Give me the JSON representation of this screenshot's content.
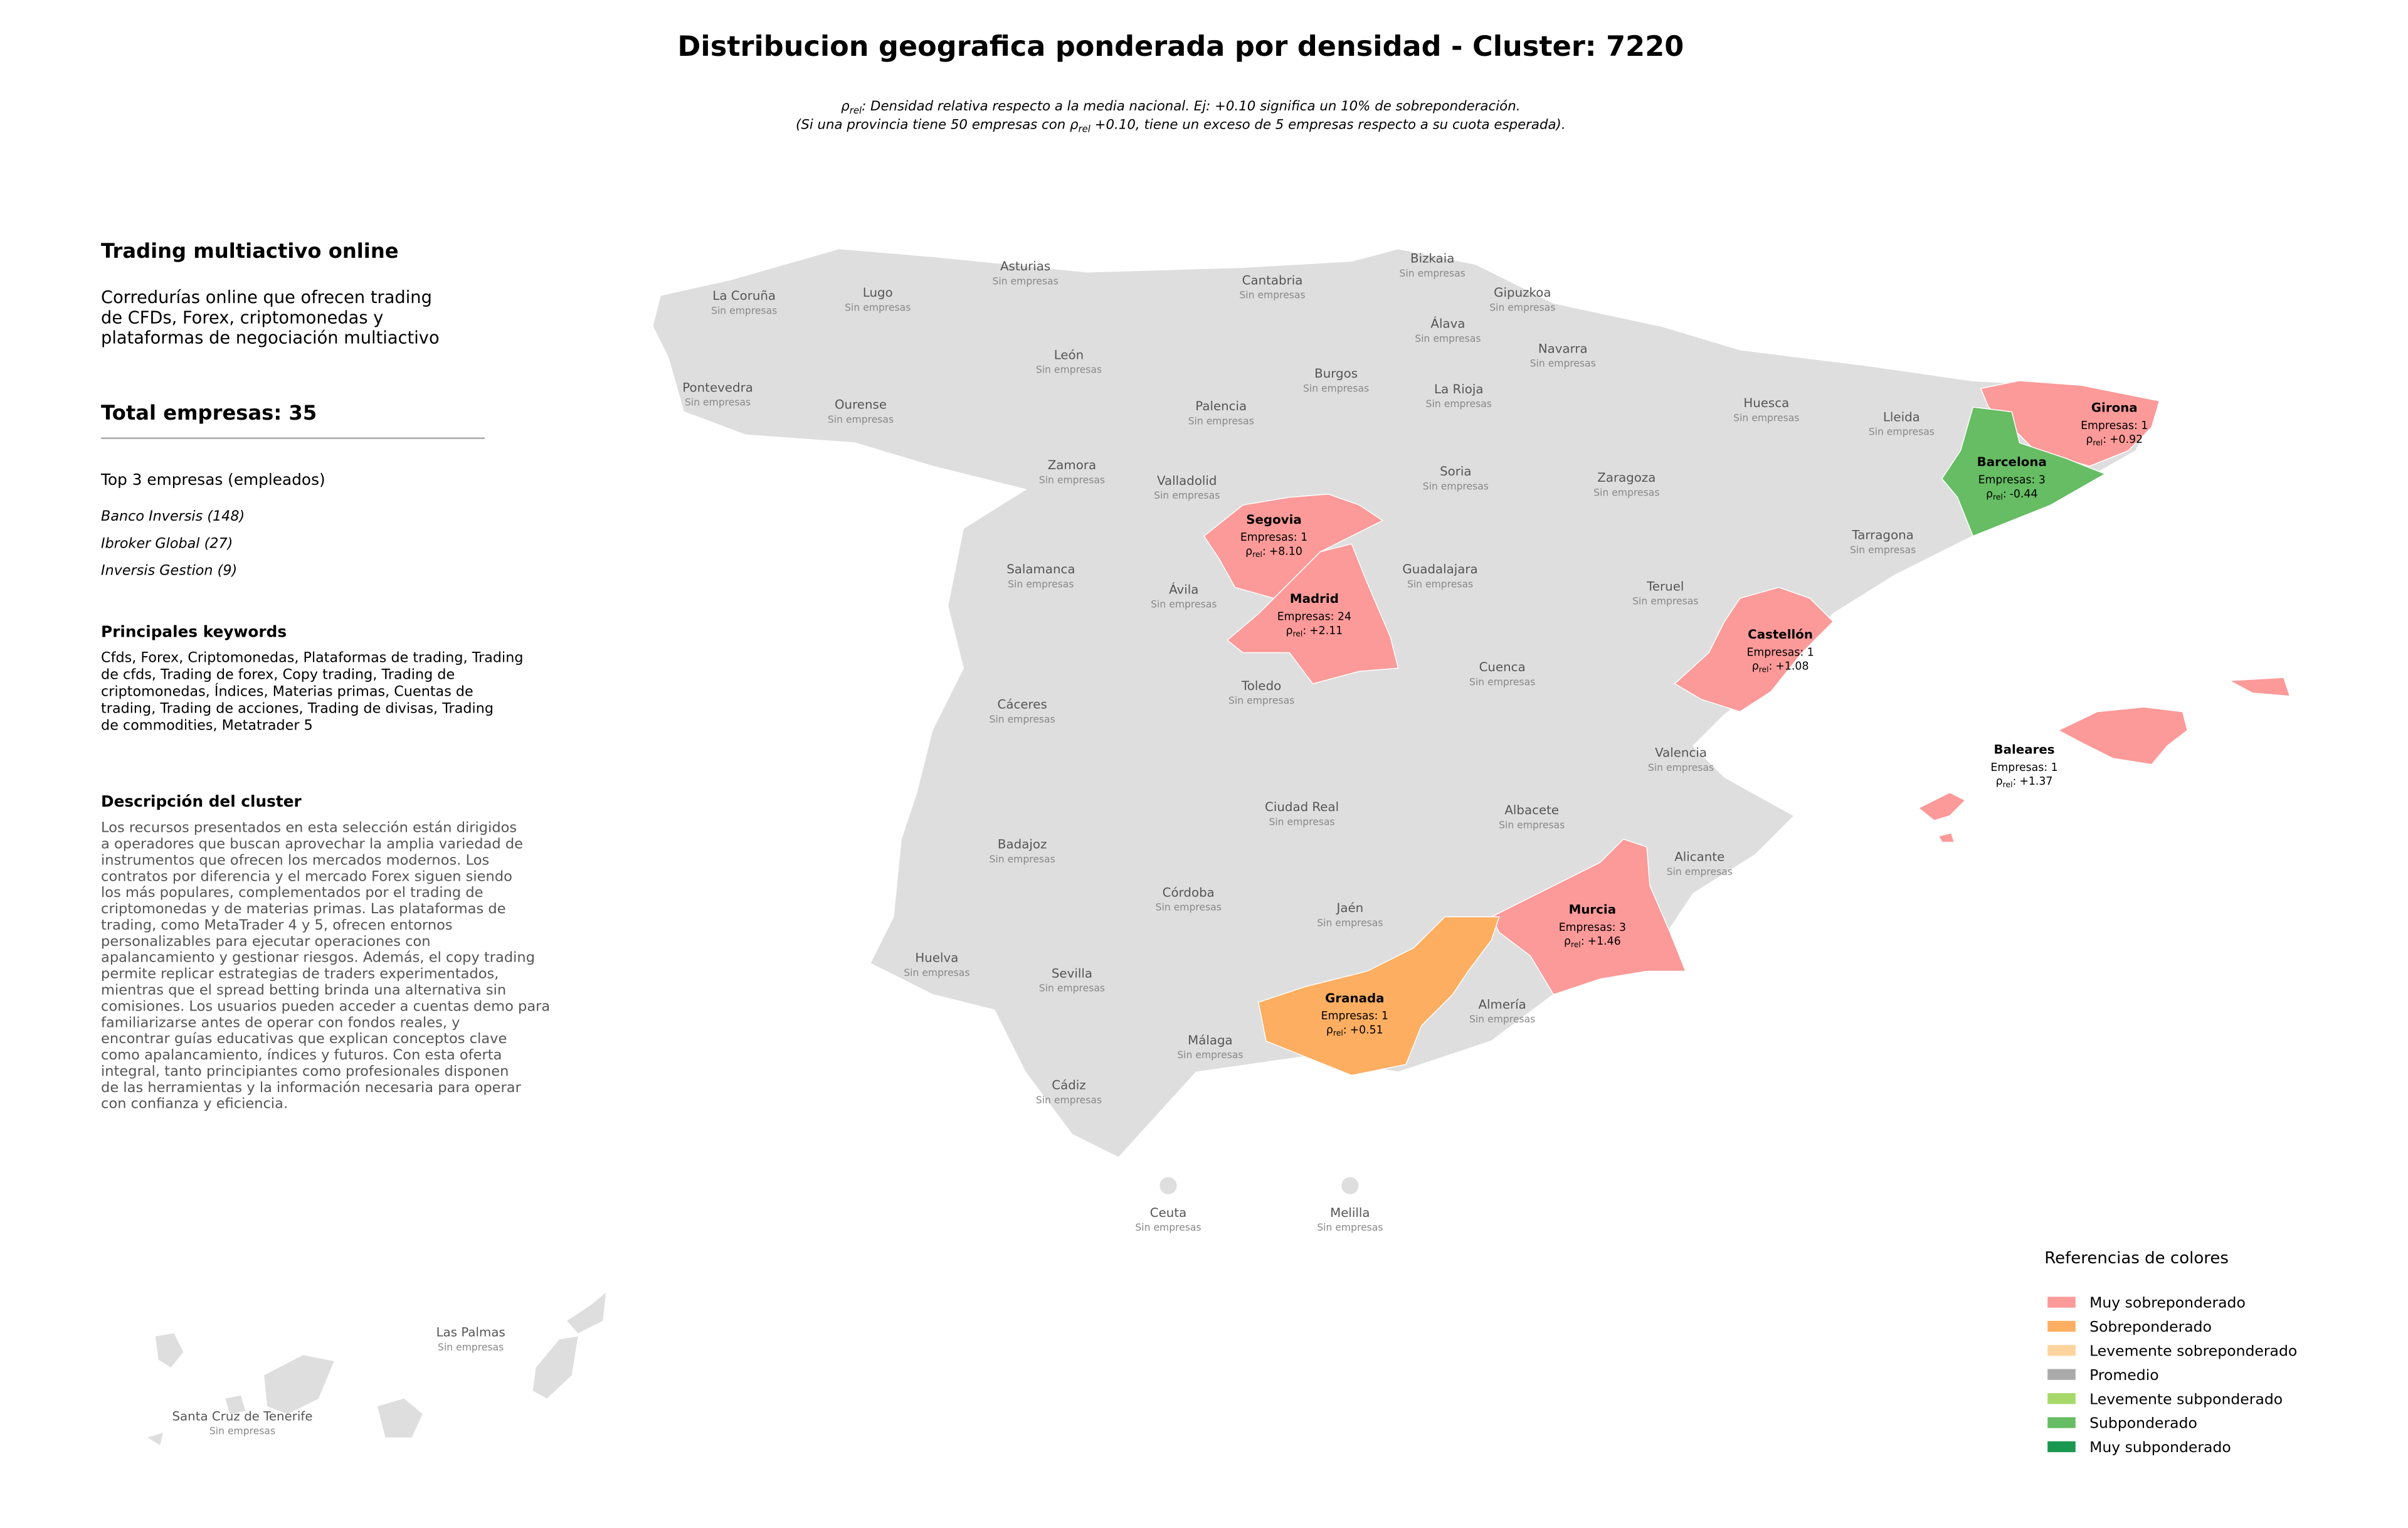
{
  "header": {
    "title": "Distribucion geografica ponderada por densidad - Cluster: 7220",
    "subtitle": {
      "line1": {
        "symbol": "ρ",
        "subscript": "rel",
        "text": ": Densidad relativa respecto a la media nacional. Ej: +0.10 significa un 10% de sobreponderación."
      },
      "line2": {
        "before": "(Si una provincia tiene 50 empresas con ρ",
        "subscript": "rel",
        "after": " +0.10, tiene un exceso de 5 empresas respecto a su cuota esperada)."
      }
    }
  },
  "sidebar": {
    "cluster_name": "Trading multiactivo online",
    "summary": [
      "Corredurías online que ofrecen trading",
      "de CFDs, Forex, criptomonedas y",
      "plataformas de negociación multiactivo"
    ],
    "total": "Total empresas: 35",
    "top_heading": "Top 3 empresas (empleados)",
    "top_companies": [
      "Banco Inversis (148)",
      "Ibroker Global (27)",
      "Inversis Gestion (9)"
    ],
    "keywords_heading": "Principales keywords",
    "keywords": [
      "Cfds, Forex, Criptomonedas, Plataformas de trading, Trading",
      "de cfds, Trading de forex, Copy trading, Trading de",
      "criptomonedas, Índices, Materias primas, Cuentas de",
      "trading, Trading de acciones, Trading de divisas, Trading",
      "de commodities, Metatrader 5"
    ],
    "description_heading": "Descripción del cluster",
    "description": [
      "Los recursos presentados en esta selección están dirigidos",
      "a operadores que buscan aprovechar la amplia variedad de",
      "instrumentos que ofrecen los mercados modernos. Los",
      "contratos por diferencia y el mercado Forex siguen siendo",
      "los más populares, complementados por el trading de",
      "criptomonedas y de materias primas. Las plataformas de",
      "trading, como MetaTrader 4 y 5, ofrecen entornos",
      "personalizables para ejecutar operaciones con",
      "apalancamiento y gestionar riesgos. Además, el copy trading",
      "permite replicar estrategias de traders experimentados,",
      "mientras que el spread betting brinda una alternativa sin",
      "comisiones. Los usuarios pueden acceder a cuentas demo para",
      "familiarizarse antes de operar con fondos reales, y",
      "encontrar guías educativas que explican conceptos clave",
      "como apalancamiento, índices y futuros. Con esta oferta",
      "integral, tanto principiantes como profesionales disponen",
      "de las herramientas y la información necesaria para operar",
      "con confianza y eficiencia."
    ]
  },
  "map": {
    "base_color": "#dedede",
    "rho_symbol": "ρ",
    "rho_subscript": "rel",
    "rho_separator": ":",
    "provinces": [
      {
        "name": "La Coruña",
        "status": "Sin empresas"
      },
      {
        "name": "Lugo",
        "status": "Sin empresas"
      },
      {
        "name": "Asturias",
        "status": "Sin empresas"
      },
      {
        "name": "Cantabria",
        "status": "Sin empresas"
      },
      {
        "name": "Bizkaia",
        "status": "Sin empresas"
      },
      {
        "name": "Gipuzkoa",
        "status": "Sin empresas"
      },
      {
        "name": "Álava",
        "status": "Sin empresas"
      },
      {
        "name": "Navarra",
        "status": "Sin empresas"
      },
      {
        "name": "Pontevedra",
        "status": "Sin empresas"
      },
      {
        "name": "Ourense",
        "status": "Sin empresas"
      },
      {
        "name": "León",
        "status": "Sin empresas"
      },
      {
        "name": "Palencia",
        "status": "Sin empresas"
      },
      {
        "name": "Burgos",
        "status": "Sin empresas"
      },
      {
        "name": "La Rioja",
        "status": "Sin empresas"
      },
      {
        "name": "Huesca",
        "status": "Sin empresas"
      },
      {
        "name": "Lleida",
        "status": "Sin empresas"
      },
      {
        "name": "Girona",
        "companies": "Empresas: 1",
        "rho": "+0.92",
        "color": "#fb9a99"
      },
      {
        "name": "Barcelona",
        "companies": "Empresas: 3",
        "rho": "-0.44",
        "color": "#66bd63"
      },
      {
        "name": "Zamora",
        "status": "Sin empresas"
      },
      {
        "name": "Valladolid",
        "status": "Sin empresas"
      },
      {
        "name": "Soria",
        "status": "Sin empresas"
      },
      {
        "name": "Zaragoza",
        "status": "Sin empresas"
      },
      {
        "name": "Tarragona",
        "status": "Sin empresas"
      },
      {
        "name": "Segovia",
        "companies": "Empresas: 1",
        "rho": "+8.10",
        "color": "#fb9a99"
      },
      {
        "name": "Salamanca",
        "status": "Sin empresas"
      },
      {
        "name": "Ávila",
        "status": "Sin empresas"
      },
      {
        "name": "Madrid",
        "companies": "Empresas: 24",
        "rho": "+2.11",
        "color": "#fb9a99"
      },
      {
        "name": "Guadalajara",
        "status": "Sin empresas"
      },
      {
        "name": "Teruel",
        "status": "Sin empresas"
      },
      {
        "name": "Castellón",
        "companies": "Empresas: 1",
        "rho": "+1.08",
        "color": "#fb9a99"
      },
      {
        "name": "Cáceres",
        "status": "Sin empresas"
      },
      {
        "name": "Toledo",
        "status": "Sin empresas"
      },
      {
        "name": "Cuenca",
        "status": "Sin empresas"
      },
      {
        "name": "Valencia",
        "status": "Sin empresas"
      },
      {
        "name": "Baleares",
        "companies": "Empresas: 1",
        "rho": "+1.37",
        "color": "#fb9a99"
      },
      {
        "name": "Badajoz",
        "status": "Sin empresas"
      },
      {
        "name": "Ciudad Real",
        "status": "Sin empresas"
      },
      {
        "name": "Albacete",
        "status": "Sin empresas"
      },
      {
        "name": "Alicante",
        "status": "Sin empresas"
      },
      {
        "name": "Córdoba",
        "status": "Sin empresas"
      },
      {
        "name": "Jaén",
        "status": "Sin empresas"
      },
      {
        "name": "Murcia",
        "companies": "Empresas: 3",
        "rho": "+1.46",
        "color": "#fb9a99"
      },
      {
        "name": "Huelva",
        "status": "Sin empresas"
      },
      {
        "name": "Sevilla",
        "status": "Sin empresas"
      },
      {
        "name": "Granada",
        "companies": "Empresas: 1",
        "rho": "+0.51",
        "color": "#fdae61"
      },
      {
        "name": "Almería",
        "status": "Sin empresas"
      },
      {
        "name": "Málaga",
        "status": "Sin empresas"
      },
      {
        "name": "Cádiz",
        "status": "Sin empresas"
      },
      {
        "name": "Ceuta",
        "status": "Sin empresas"
      },
      {
        "name": "Melilla",
        "status": "Sin empresas"
      },
      {
        "name": "Las Palmas",
        "status": "Sin empresas"
      },
      {
        "name": "Santa Cruz de Tenerife",
        "status": "Sin empresas"
      }
    ]
  },
  "legend": {
    "title": "Referencias de colores",
    "items": [
      {
        "label": "Muy sobreponderado",
        "color": "#fb9a99"
      },
      {
        "label": "Sobreponderado",
        "color": "#fdae61"
      },
      {
        "label": "Levemente sobreponderado",
        "color": "#fdd49e"
      },
      {
        "label": "Promedio",
        "color": "#aaaaaa"
      },
      {
        "label": "Levemente subponderado",
        "color": "#a6d96a"
      },
      {
        "label": "Subponderado",
        "color": "#66bd63"
      },
      {
        "label": "Muy subponderado",
        "color": "#1a9850"
      }
    ]
  }
}
